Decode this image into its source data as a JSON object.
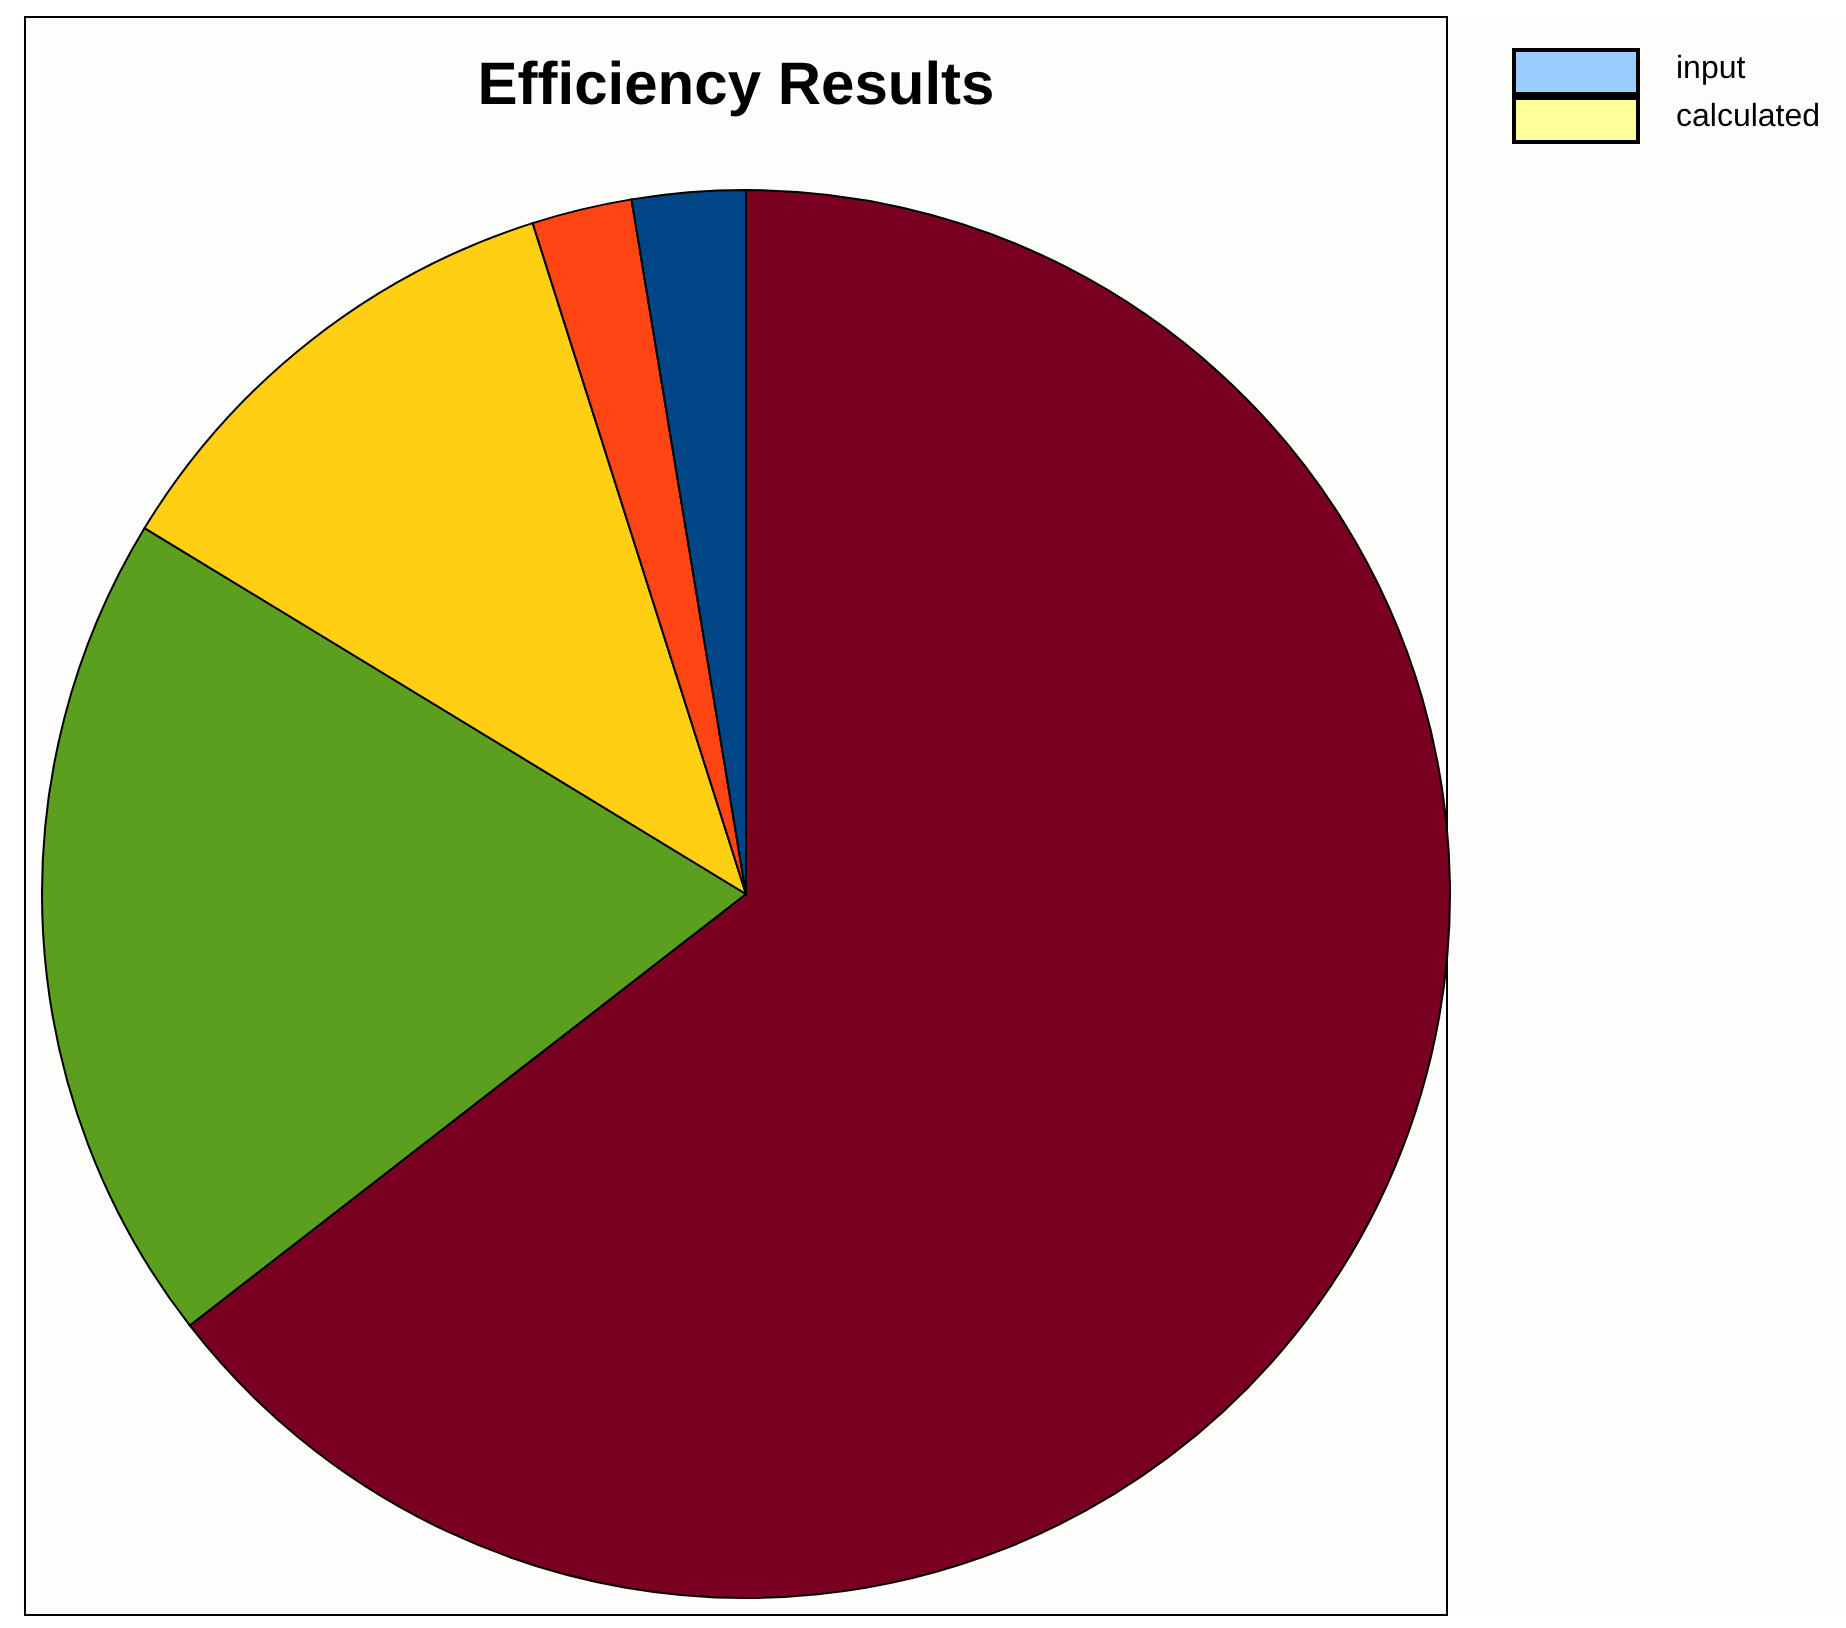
{
  "chart_data": {
    "type": "pie",
    "title": "Efficiency Results",
    "categories": [
      null,
      null,
      null,
      null,
      null
    ],
    "values": [
      64.5,
      19.2,
      11.4,
      2.3,
      2.6
    ],
    "colors": [
      "#7a0021",
      "#5c9e1e",
      "#ffcf14",
      "#ff4514",
      "#004586"
    ],
    "annotations": [
      "input",
      "calculated"
    ]
  }
}
